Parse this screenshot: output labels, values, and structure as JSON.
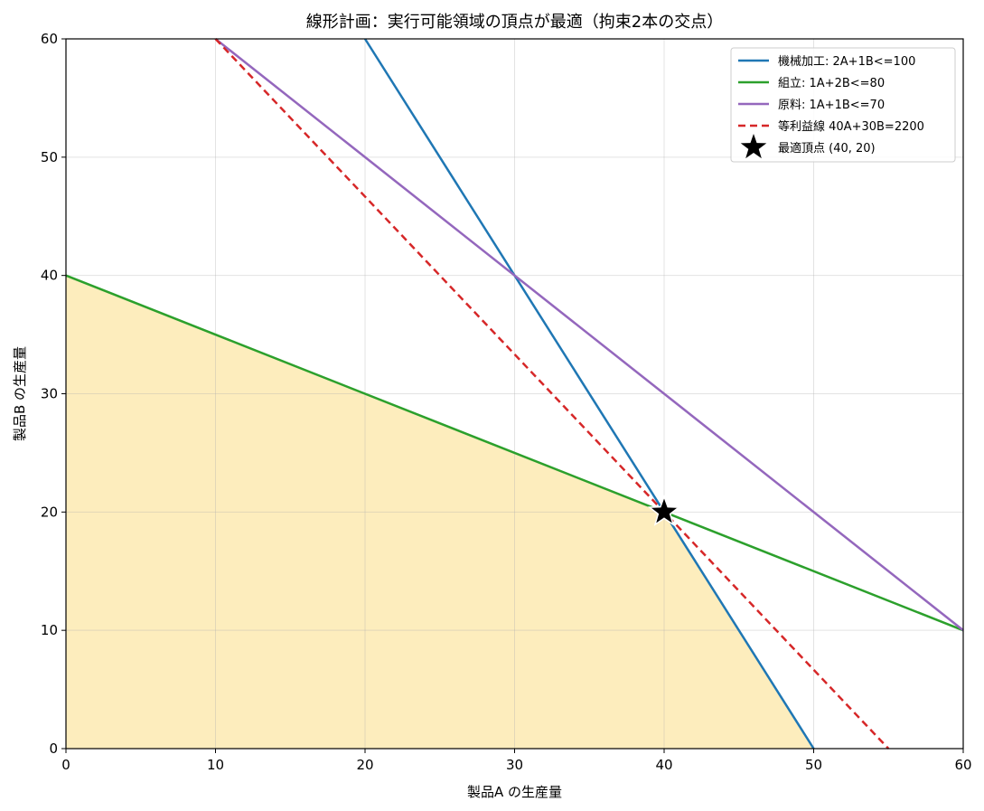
{
  "chart_data": {
    "type": "line",
    "title": "線形計画：実行可能領域の頂点が最適（拘束2本の交点）",
    "xlabel": "製品A の生産量",
    "ylabel": "製品B の生産量",
    "xlim": [
      0,
      60
    ],
    "ylim": [
      0,
      60
    ],
    "xticks": [
      0,
      10,
      20,
      30,
      40,
      50,
      60
    ],
    "yticks": [
      0,
      10,
      20,
      30,
      40,
      50,
      60
    ],
    "x_tick_labels": [
      "0",
      "10",
      "20",
      "30",
      "40",
      "50",
      "60"
    ],
    "y_tick_labels": [
      "0",
      "10",
      "20",
      "30",
      "40",
      "50",
      "60"
    ],
    "grid": true,
    "legend_position": "top-right",
    "feasible_region": {
      "color": "#fdedbd",
      "vertices": [
        [
          0,
          0
        ],
        [
          50,
          0
        ],
        [
          40,
          20
        ],
        [
          0,
          40
        ]
      ]
    },
    "series": [
      {
        "name": "機械加工: 2A+1B<=100",
        "color": "#1f77b4",
        "style": "solid",
        "points": [
          [
            20,
            60
          ],
          [
            50,
            0
          ]
        ]
      },
      {
        "name": "組立: 1A+2B<=80",
        "color": "#2ca02c",
        "style": "solid",
        "points": [
          [
            0,
            40
          ],
          [
            60,
            10
          ]
        ]
      },
      {
        "name": "原料: 1A+1B<=70",
        "color": "#9467bd",
        "style": "solid",
        "points": [
          [
            10,
            60
          ],
          [
            60,
            10
          ]
        ]
      },
      {
        "name": "等利益線 40A+30B=2200",
        "color": "#d62728",
        "style": "dashed",
        "points": [
          [
            10,
            60
          ],
          [
            55,
            0
          ]
        ]
      }
    ],
    "optimum": {
      "name": "最適頂点 (40, 20)",
      "x": 40,
      "y": 20,
      "color": "#000000",
      "marker": "star"
    }
  }
}
